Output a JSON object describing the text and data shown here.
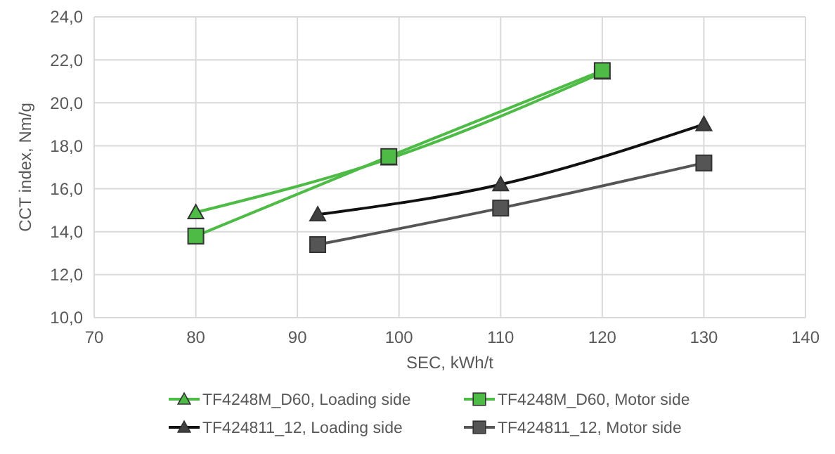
{
  "chart_data": {
    "type": "line",
    "xlabel": "SEC, kWh/t",
    "ylabel": "CCT index, Nm/g",
    "xlim": [
      70,
      140
    ],
    "xticks": [
      70,
      80,
      90,
      100,
      110,
      120,
      130,
      140
    ],
    "ylim": [
      10,
      24
    ],
    "yticks": [
      {
        "value": 10,
        "label": "10,0"
      },
      {
        "value": 12,
        "label": "12,0"
      },
      {
        "value": 14,
        "label": "14,0"
      },
      {
        "value": 16,
        "label": "16,0"
      },
      {
        "value": 18,
        "label": "18,0"
      },
      {
        "value": 20,
        "label": "20,0"
      },
      {
        "value": 22,
        "label": "22,0"
      },
      {
        "value": 24,
        "label": "24,0"
      }
    ],
    "grid": true,
    "legend": "bottom",
    "series": [
      {
        "name": "TF4248M_D60, Loading side",
        "color": "#4dbb45",
        "marker": "triangle",
        "x": [
          80,
          99,
          120
        ],
        "values": [
          14.9,
          17.4,
          21.4
        ]
      },
      {
        "name": "TF4248M_D60, Motor side",
        "color": "#4dbb45",
        "marker": "square",
        "x": [
          80,
          99,
          120
        ],
        "values": [
          13.8,
          17.5,
          21.5
        ]
      },
      {
        "name": "TF424811_12, Loading side",
        "color": "#111111",
        "marker": "triangle",
        "x": [
          92,
          110,
          130
        ],
        "values": [
          14.8,
          16.2,
          19.0
        ]
      },
      {
        "name": "TF424811_12, Motor side",
        "color": "#555555",
        "marker": "square",
        "x": [
          92,
          110,
          130
        ],
        "values": [
          13.4,
          15.1,
          17.2
        ]
      }
    ]
  }
}
